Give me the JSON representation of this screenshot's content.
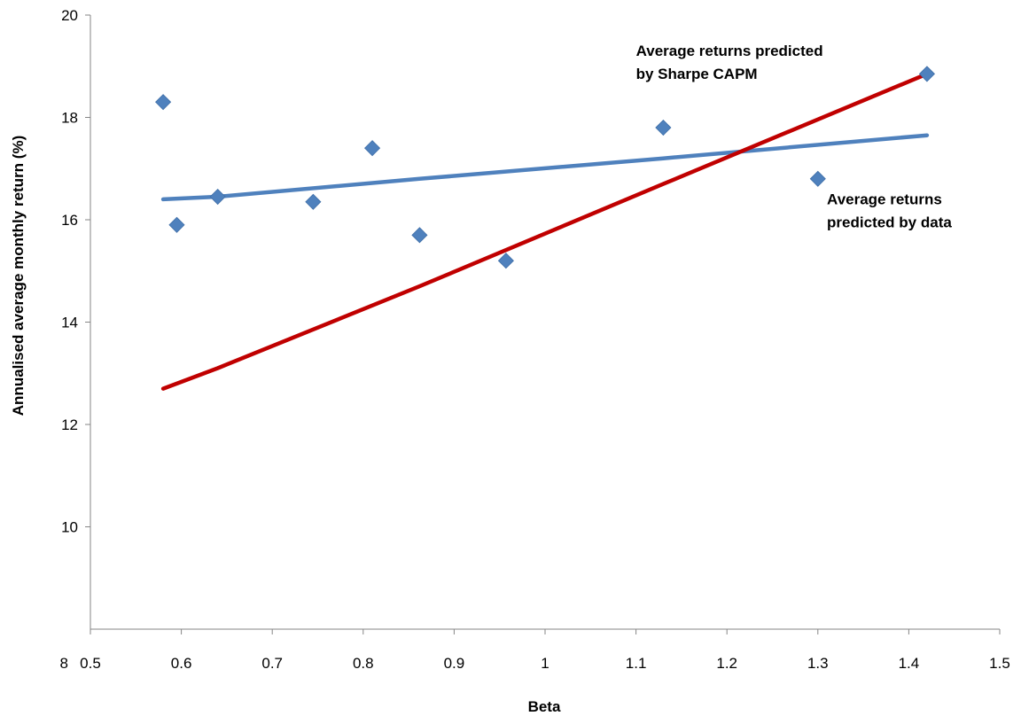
{
  "chart_data": {
    "type": "scatter",
    "xlabel": "Beta",
    "ylabel": "Annualised average monthly return (%)",
    "xlim": [
      0.5,
      1.5
    ],
    "ylim": [
      8,
      20
    ],
    "x_ticks": [
      0.5,
      0.6,
      0.7,
      0.8,
      0.9,
      1,
      1.1,
      1.2,
      1.3,
      1.4,
      1.5
    ],
    "x_tick_labels": [
      "0.5",
      "0.6",
      "0.7",
      "0.8",
      "0.9",
      "1",
      "1.1",
      "1.2",
      "1.3",
      "1.4",
      "1.5"
    ],
    "y_ticks": [
      10,
      12,
      14,
      16,
      18,
      20
    ],
    "y_tick_labels": [
      "10",
      "12",
      "14",
      "16",
      "18",
      "20"
    ],
    "y_origin_label": "8",
    "grid": false,
    "legend": "none",
    "series": [
      {
        "kind": "points",
        "marker": "diamond",
        "color": "#4F81BD",
        "x": [
          0.58,
          0.595,
          0.64,
          0.745,
          0.81,
          0.862,
          0.957,
          1.13,
          1.3,
          1.42
        ],
        "y": [
          18.3,
          15.9,
          16.45,
          16.35,
          17.4,
          15.7,
          15.2,
          17.8,
          16.8,
          18.85
        ]
      },
      {
        "kind": "line",
        "color": "#4F81BD",
        "x": [
          0.58,
          0.64,
          0.862,
          1.13,
          1.42
        ],
        "y": [
          16.4,
          16.45,
          16.8,
          17.2,
          17.65
        ]
      },
      {
        "kind": "line",
        "color": "#C00000",
        "x": [
          0.58,
          0.64,
          0.862,
          1.13,
          1.42
        ],
        "y": [
          12.7,
          13.1,
          14.7,
          16.7,
          18.85
        ]
      }
    ],
    "annotations": [
      {
        "lines": [
          "Average returns predicted",
          "by Sharpe  CAPM"
        ],
        "anchor_x": 1.1,
        "anchor_y": 19.2
      },
      {
        "lines": [
          "Average returns",
          "predicted by data"
        ],
        "anchor_x": 1.31,
        "anchor_y": 16.3
      }
    ]
  }
}
